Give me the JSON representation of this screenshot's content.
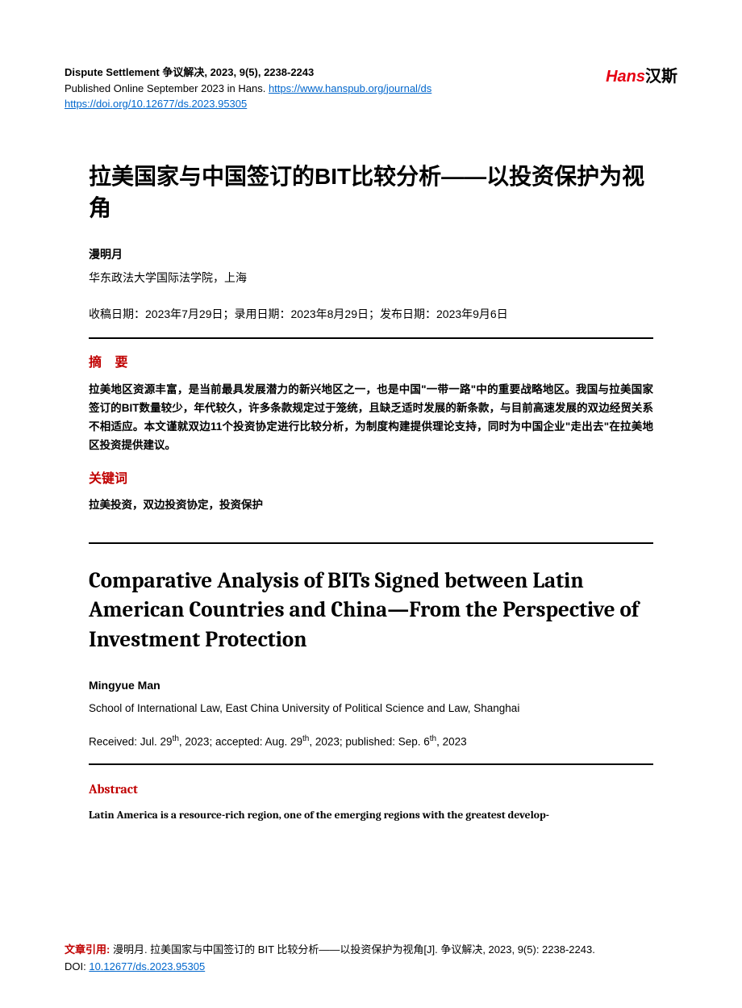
{
  "header": {
    "journal_name": "Dispute Settlement  争议解决, 2023, 9(5), 2238-2243",
    "published_prefix": "Published Online September 2023 in Hans. ",
    "journal_url": "https://www.hanspub.org/journal/ds",
    "doi_url": "https://doi.org/10.12677/ds.2023.95305",
    "logo_red": "Hans",
    "logo_black": "汉斯"
  },
  "cn": {
    "title": "拉美国家与中国签订的BIT比较分析——以投资保护为视角",
    "author": "漫明月",
    "affiliation": "华东政法大学国际法学院，上海",
    "dates": "收稿日期：2023年7月29日；录用日期：2023年8月29日；发布日期：2023年9月6日",
    "abstract_heading": "摘  要",
    "abstract": "拉美地区资源丰富，是当前最具发展潜力的新兴地区之一，也是中国\"一带一路\"中的重要战略地区。我国与拉美国家签订的BIT数量较少，年代较久，许多条款规定过于笼统，且缺乏适时发展的新条款，与目前高速发展的双边经贸关系不相适应。本文谨就双边11个投资协定进行比较分析，为制度构建提供理论支持，同时为中国企业\"走出去\"在拉美地区投资提供建议。",
    "keywords_heading": "关键词",
    "keywords": "拉美投资，双边投资协定，投资保护"
  },
  "en": {
    "title": "Comparative Analysis of BITs Signed between Latin American Countries and China—From the Perspective of Investment Protection",
    "author": "Mingyue Man",
    "affiliation": "School of International Law, East China University of Political Science and Law, Shanghai",
    "received_prefix": "Received: Jul. 29",
    "received_suffix": ", 2023; accepted: Aug. 29",
    "accepted_suffix": ", 2023; published: Sep. 6",
    "published_suffix": ", 2023",
    "th": "th",
    "abstract_heading": "Abstract",
    "abstract": "Latin America is a resource-rich region, one of the emerging regions with the greatest develop-"
  },
  "footer": {
    "label": "文章引用: ",
    "text1": "漫明月. 拉美国家与中国签订的 BIT 比较分析——以投资保护为视角[J]. 争议解决, 2023, 9(5): 2238-2243.",
    "doi_label": "DOI: ",
    "doi": "10.12677/ds.2023.95305"
  }
}
